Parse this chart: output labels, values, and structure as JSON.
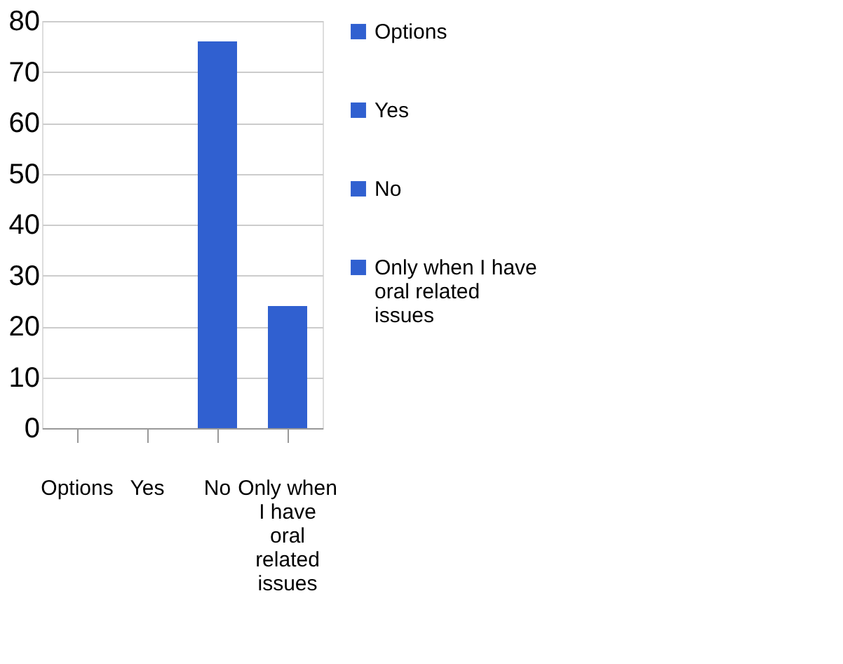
{
  "chart_data": {
    "type": "bar",
    "categories": [
      "Options",
      "Yes",
      "No",
      "Only when I have oral related issues"
    ],
    "series": [
      {
        "name": "Options",
        "color": "#3060d0",
        "values": [
          0,
          null,
          null,
          null
        ]
      },
      {
        "name": "Yes",
        "color": "#3060d0",
        "values": [
          null,
          0,
          null,
          null
        ]
      },
      {
        "name": "No",
        "color": "#3060d0",
        "values": [
          null,
          null,
          76,
          null
        ]
      },
      {
        "name": "Only when I have oral related issues",
        "color": "#3060d0",
        "values": [
          null,
          null,
          null,
          24
        ]
      }
    ],
    "ylim": [
      0,
      80
    ],
    "yticks": [
      0,
      10,
      20,
      30,
      40,
      50,
      60,
      70,
      80
    ],
    "grid": "y",
    "legend": "right"
  }
}
